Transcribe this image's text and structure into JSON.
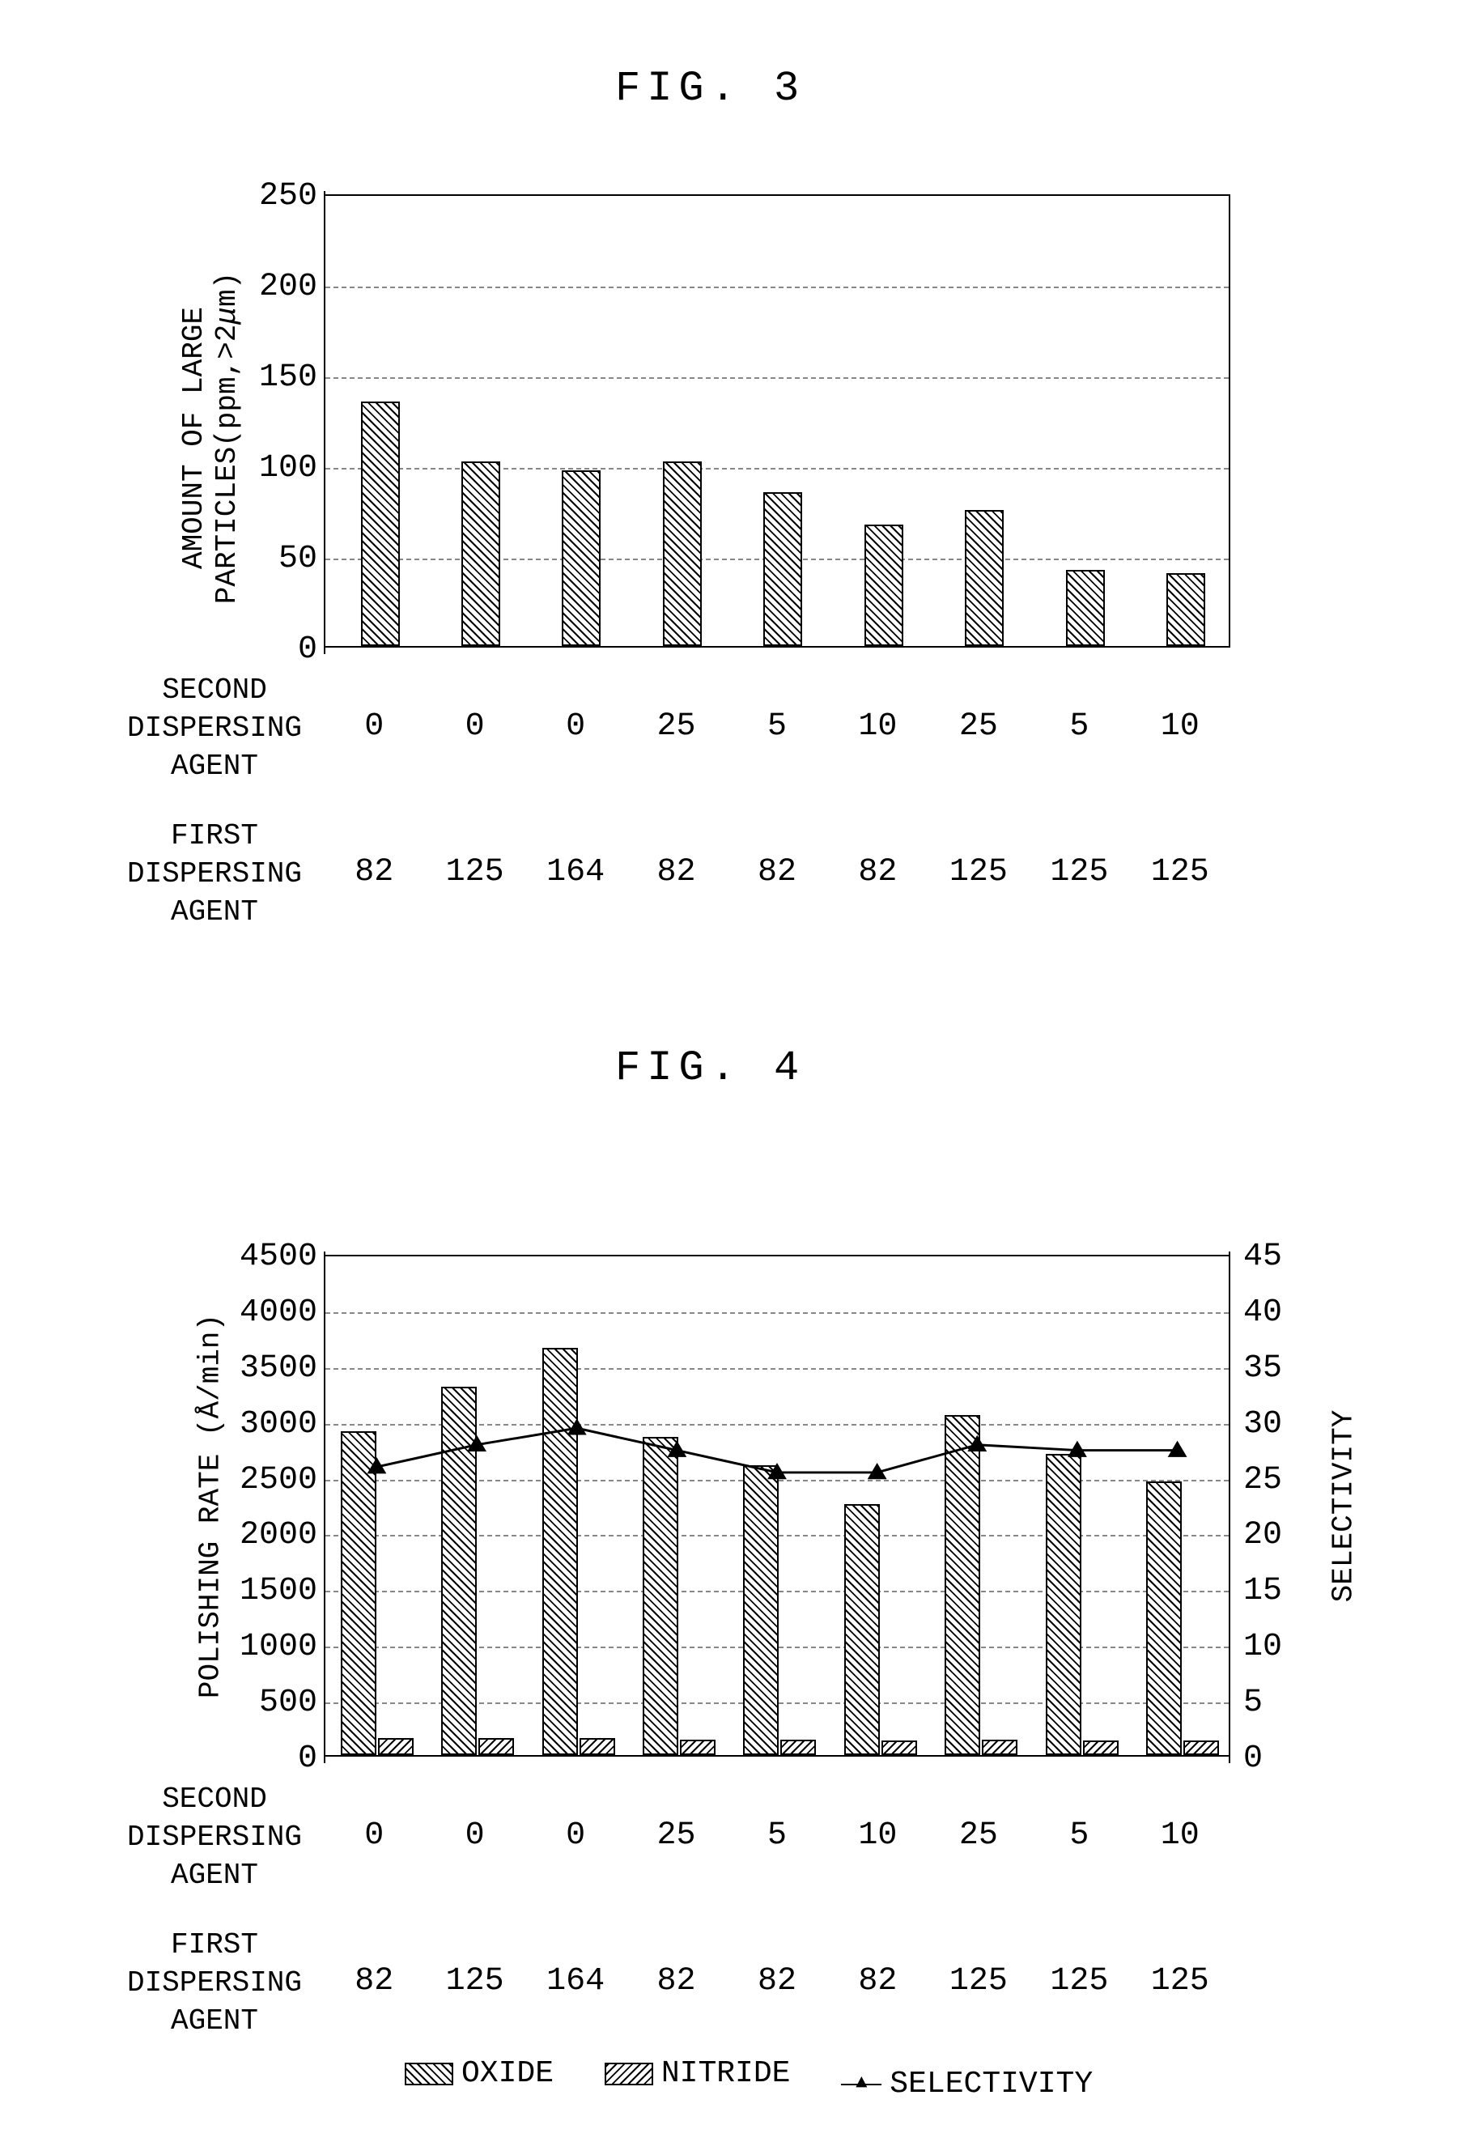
{
  "fig3": {
    "title": "FIG. 3",
    "ylabel": "AMOUNT OF LARGE\nPARTICLES(ppm,>2μm)",
    "ylim": [
      0,
      250
    ],
    "ytick_step": 50,
    "yticks": [
      0,
      50,
      100,
      150,
      200,
      250
    ],
    "bars": [
      135,
      102,
      97,
      102,
      85,
      67,
      75,
      42,
      40
    ],
    "bar_color_pattern": "hatch-left",
    "x_second_dispersing": [
      "0",
      "0",
      "0",
      "25",
      "5",
      "10",
      "25",
      "5",
      "10"
    ],
    "x_first_dispersing": [
      "82",
      "125",
      "164",
      "82",
      "82",
      "82",
      "125",
      "125",
      "125"
    ],
    "x_row1_label": "SECOND\nDISPERSING\nAGENT",
    "x_row2_label": "FIRST\nDISPERSING\nAGENT",
    "grid_color": "#888888",
    "font_size_axis": 36
  },
  "fig4": {
    "title": "FIG. 4",
    "ylabel": "POLISHING RATE (Å/min)",
    "y2label": "SELECTIVITY",
    "ylim": [
      0,
      4500
    ],
    "ytick_step": 500,
    "yticks": [
      0,
      500,
      1000,
      1500,
      2000,
      2500,
      3000,
      3500,
      4000,
      4500
    ],
    "y2lim": [
      0,
      45
    ],
    "y2tick_step": 5,
    "y2ticks": [
      0,
      5,
      10,
      15,
      20,
      25,
      30,
      35,
      40,
      45
    ],
    "oxide_bars": [
      2900,
      3300,
      3650,
      2850,
      2600,
      2250,
      3050,
      2700,
      2450
    ],
    "nitride_bars": [
      150,
      150,
      150,
      140,
      140,
      130,
      140,
      130,
      130
    ],
    "selectivity_line": [
      26,
      28,
      29.5,
      27.5,
      25.5,
      25.5,
      28,
      27.5,
      27.5
    ],
    "x_second_dispersing": [
      "0",
      "0",
      "0",
      "25",
      "5",
      "10",
      "25",
      "5",
      "10"
    ],
    "x_first_dispersing": [
      "82",
      "125",
      "164",
      "82",
      "82",
      "82",
      "125",
      "125",
      "125"
    ],
    "x_row1_label": "SECOND\nDISPERSING\nAGENT",
    "x_row2_label": "FIRST\nDISPERSING\nAGENT",
    "legend": {
      "oxide": "OXIDE",
      "nitride": "NITRIDE",
      "selectivity": "SELECTIVITY"
    },
    "grid_color": "#888888"
  },
  "colors": {
    "border": "#000000",
    "background": "#ffffff",
    "grid": "#888888"
  }
}
